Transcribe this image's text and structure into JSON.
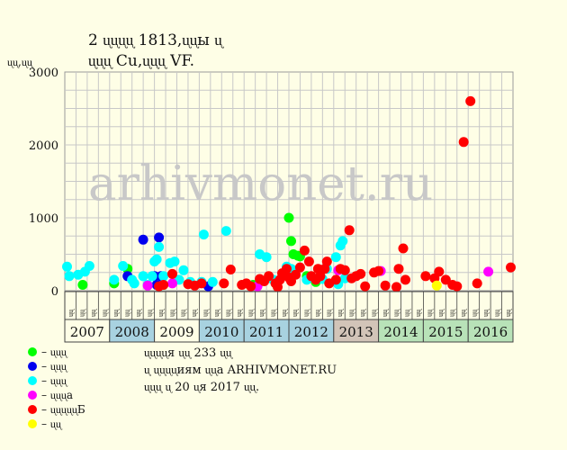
{
  "header": {
    "title_line1": "2 ᶙᶙᶙᶙ 1813,ᶙᶙы ᶙ",
    "title_line2": "ᶙᶙᶙ Cu,ᶙᶙᶙ VF."
  },
  "axis": {
    "y_unit": "ᶙᶙ,ᶙᶙ",
    "y_ticks": [
      "0",
      "1000",
      "2000",
      "3000"
    ]
  },
  "watermark": "arhivmonet.ru",
  "legend": [
    {
      "label": "– ᶙᶙᶙ",
      "color": "#00ff00"
    },
    {
      "label": "– ᶙᶙᶙ",
      "color": "#0000ee"
    },
    {
      "label": "– ᶙᶙᶙ",
      "color": "#00ffff"
    },
    {
      "label": "– ᶙᶙᶙа",
      "color": "#ff00ff"
    },
    {
      "label": "– ᶙᶙᶙᶙᶙБ",
      "color": "#ff0000"
    },
    {
      "label": "– ᶙᶙ",
      "color": "#ffff00"
    }
  ],
  "notes": {
    "line1": "ᶙᶙᶙᶙя ᶙᶙ 233 ᶙᶙ",
    "line2": "ᶙ ᶙᶙᶙᶙиям ᶙᶙа ARHIVMONET.RU",
    "line3": "ᶙᶙᶙ ᶙ 20 ᶙя 2017 ᶙᶙ."
  },
  "chart_data": {
    "type": "scatter",
    "x_unit": "year",
    "ylim": [
      0,
      3000
    ],
    "xlim": [
      2007,
      2017
    ],
    "grid": true,
    "years": [
      "2007",
      "2008",
      "2009",
      "2010",
      "2011",
      "2012",
      "2013",
      "2014",
      "2015",
      "2016"
    ],
    "year_colors": [
      "#fefee6",
      "#a8d2e0",
      "#fefee6",
      "#a8d2e0",
      "#a8d2e0",
      "#a8d2e0",
      "#d2c4b8",
      "#b8e2b8",
      "#b8e2b8",
      "#b8e2b8"
    ],
    "slot_labels": [
      "ᶙᶙ",
      "ᶙᶙ",
      "ᶙᶙ",
      "ᶙᶙ"
    ],
    "series": [
      {
        "name": "ᶙᶙᶙ",
        "color": "#00ff00",
        "points": [
          [
            2007.4,
            80
          ],
          [
            2008.1,
            100
          ],
          [
            2008.4,
            300
          ],
          [
            2009.2,
            80
          ],
          [
            2011.2,
            80
          ],
          [
            2012.0,
            1000
          ],
          [
            2012.05,
            680
          ],
          [
            2012.1,
            500
          ],
          [
            2012.2,
            480
          ],
          [
            2012.25,
            470
          ],
          [
            2012.4,
            200
          ],
          [
            2012.6,
            120
          ]
        ]
      },
      {
        "name": "ᶙᶙᶙ",
        "color": "#0000ee",
        "points": [
          [
            2008.4,
            200
          ],
          [
            2008.75,
            700
          ],
          [
            2009.0,
            200
          ],
          [
            2009.05,
            80
          ],
          [
            2009.1,
            730
          ],
          [
            2009.15,
            200
          ],
          [
            2010.2,
            60
          ]
        ]
      },
      {
        "name": "ᶙᶙᶙ",
        "color": "#00ffff",
        "points": [
          [
            2007.05,
            330
          ],
          [
            2007.1,
            200
          ],
          [
            2007.3,
            220
          ],
          [
            2007.45,
            260
          ],
          [
            2007.55,
            340
          ],
          [
            2008.1,
            150
          ],
          [
            2008.3,
            340
          ],
          [
            2008.5,
            150
          ],
          [
            2008.55,
            100
          ],
          [
            2008.75,
            200
          ],
          [
            2008.85,
            80
          ],
          [
            2008.95,
            200
          ],
          [
            2009.0,
            400
          ],
          [
            2009.05,
            430
          ],
          [
            2009.1,
            600
          ],
          [
            2009.2,
            200
          ],
          [
            2009.35,
            380
          ],
          [
            2009.45,
            400
          ],
          [
            2009.55,
            150
          ],
          [
            2009.65,
            280
          ],
          [
            2009.8,
            120
          ],
          [
            2010.05,
            120
          ],
          [
            2010.1,
            770
          ],
          [
            2010.3,
            120
          ],
          [
            2010.6,
            820
          ],
          [
            2011.35,
            500
          ],
          [
            2011.5,
            460
          ],
          [
            2011.65,
            150
          ],
          [
            2011.95,
            330
          ],
          [
            2012.05,
            300
          ],
          [
            2012.4,
            150
          ],
          [
            2012.7,
            200
          ],
          [
            2012.75,
            160
          ],
          [
            2012.85,
            300
          ],
          [
            2013.05,
            460
          ],
          [
            2013.15,
            620
          ],
          [
            2013.2,
            680
          ],
          [
            2013.25,
            170
          ],
          [
            2013.1,
            90
          ]
        ]
      },
      {
        "name": "ᶙᶙᶙа",
        "color": "#ff00ff",
        "points": [
          [
            2008.85,
            70
          ],
          [
            2009.4,
            100
          ],
          [
            2011.3,
            60
          ],
          [
            2013.1,
            280
          ],
          [
            2014.05,
            270
          ],
          [
            2016.45,
            260
          ]
        ]
      },
      {
        "name": "ᶙᶙᶙᶙᶙБ",
        "color": "#ff0000",
        "points": [
          [
            2009.1,
            60
          ],
          [
            2009.2,
            80
          ],
          [
            2009.4,
            230
          ],
          [
            2009.75,
            90
          ],
          [
            2009.9,
            70
          ],
          [
            2010.05,
            100
          ],
          [
            2010.55,
            100
          ],
          [
            2010.7,
            290
          ],
          [
            2010.95,
            80
          ],
          [
            2011.05,
            100
          ],
          [
            2011.15,
            60
          ],
          [
            2011.35,
            160
          ],
          [
            2011.45,
            130
          ],
          [
            2011.55,
            200
          ],
          [
            2011.7,
            100
          ],
          [
            2011.75,
            50
          ],
          [
            2011.8,
            150
          ],
          [
            2011.85,
            240
          ],
          [
            2011.95,
            300
          ],
          [
            2012.0,
            180
          ],
          [
            2012.05,
            130
          ],
          [
            2012.15,
            220
          ],
          [
            2012.25,
            320
          ],
          [
            2012.35,
            550
          ],
          [
            2012.45,
            400
          ],
          [
            2012.5,
            200
          ],
          [
            2012.6,
            150
          ],
          [
            2012.65,
            300
          ],
          [
            2012.7,
            200
          ],
          [
            2012.8,
            300
          ],
          [
            2012.85,
            400
          ],
          [
            2012.9,
            100
          ],
          [
            2013.05,
            150
          ],
          [
            2013.15,
            300
          ],
          [
            2013.25,
            280
          ],
          [
            2013.35,
            830
          ],
          [
            2013.4,
            170
          ],
          [
            2013.5,
            200
          ],
          [
            2013.6,
            230
          ],
          [
            2013.7,
            60
          ],
          [
            2013.9,
            250
          ],
          [
            2014.0,
            270
          ],
          [
            2014.15,
            70
          ],
          [
            2014.4,
            50
          ],
          [
            2014.45,
            300
          ],
          [
            2014.55,
            580
          ],
          [
            2014.6,
            150
          ],
          [
            2015.05,
            200
          ],
          [
            2015.25,
            170
          ],
          [
            2015.35,
            260
          ],
          [
            2015.5,
            150
          ],
          [
            2015.65,
            80
          ],
          [
            2015.75,
            60
          ],
          [
            2015.9,
            2040
          ],
          [
            2016.05,
            2600
          ],
          [
            2016.2,
            100
          ],
          [
            2016.95,
            320
          ]
        ]
      },
      {
        "name": "ᶙᶙ",
        "color": "#ffff00",
        "points": [
          [
            2015.3,
            70
          ]
        ]
      }
    ]
  }
}
